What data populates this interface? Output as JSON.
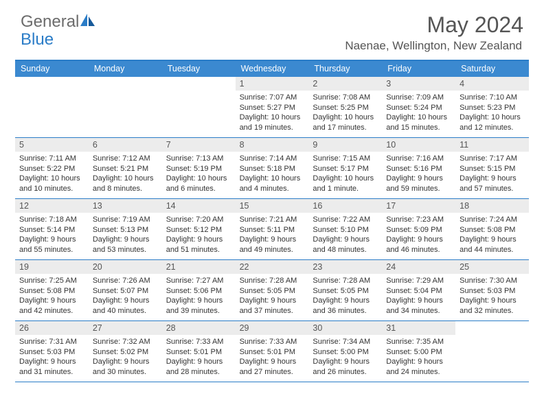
{
  "logo": {
    "word1": "General",
    "word2": "Blue"
  },
  "title": "May 2024",
  "location": "Naenae, Wellington, New Zealand",
  "colors": {
    "header_bg": "#3b89d0",
    "border": "#2a7cc7",
    "daynum_bg": "#ececec",
    "text": "#333333",
    "muted": "#555555",
    "logo_gray": "#6b6b6b",
    "logo_blue": "#2a7cc7",
    "background": "#ffffff"
  },
  "typography": {
    "title_fontsize": 32,
    "location_fontsize": 17,
    "header_fontsize": 12.5,
    "daynum_fontsize": 12.5,
    "body_fontsize": 11
  },
  "day_names": [
    "Sunday",
    "Monday",
    "Tuesday",
    "Wednesday",
    "Thursday",
    "Friday",
    "Saturday"
  ],
  "weeks": [
    [
      null,
      null,
      null,
      {
        "n": "1",
        "sr": "Sunrise: 7:07 AM",
        "ss": "Sunset: 5:27 PM",
        "d1": "Daylight: 10 hours",
        "d2": "and 19 minutes."
      },
      {
        "n": "2",
        "sr": "Sunrise: 7:08 AM",
        "ss": "Sunset: 5:25 PM",
        "d1": "Daylight: 10 hours",
        "d2": "and 17 minutes."
      },
      {
        "n": "3",
        "sr": "Sunrise: 7:09 AM",
        "ss": "Sunset: 5:24 PM",
        "d1": "Daylight: 10 hours",
        "d2": "and 15 minutes."
      },
      {
        "n": "4",
        "sr": "Sunrise: 7:10 AM",
        "ss": "Sunset: 5:23 PM",
        "d1": "Daylight: 10 hours",
        "d2": "and 12 minutes."
      }
    ],
    [
      {
        "n": "5",
        "sr": "Sunrise: 7:11 AM",
        "ss": "Sunset: 5:22 PM",
        "d1": "Daylight: 10 hours",
        "d2": "and 10 minutes."
      },
      {
        "n": "6",
        "sr": "Sunrise: 7:12 AM",
        "ss": "Sunset: 5:21 PM",
        "d1": "Daylight: 10 hours",
        "d2": "and 8 minutes."
      },
      {
        "n": "7",
        "sr": "Sunrise: 7:13 AM",
        "ss": "Sunset: 5:19 PM",
        "d1": "Daylight: 10 hours",
        "d2": "and 6 minutes."
      },
      {
        "n": "8",
        "sr": "Sunrise: 7:14 AM",
        "ss": "Sunset: 5:18 PM",
        "d1": "Daylight: 10 hours",
        "d2": "and 4 minutes."
      },
      {
        "n": "9",
        "sr": "Sunrise: 7:15 AM",
        "ss": "Sunset: 5:17 PM",
        "d1": "Daylight: 10 hours",
        "d2": "and 1 minute."
      },
      {
        "n": "10",
        "sr": "Sunrise: 7:16 AM",
        "ss": "Sunset: 5:16 PM",
        "d1": "Daylight: 9 hours",
        "d2": "and 59 minutes."
      },
      {
        "n": "11",
        "sr": "Sunrise: 7:17 AM",
        "ss": "Sunset: 5:15 PM",
        "d1": "Daylight: 9 hours",
        "d2": "and 57 minutes."
      }
    ],
    [
      {
        "n": "12",
        "sr": "Sunrise: 7:18 AM",
        "ss": "Sunset: 5:14 PM",
        "d1": "Daylight: 9 hours",
        "d2": "and 55 minutes."
      },
      {
        "n": "13",
        "sr": "Sunrise: 7:19 AM",
        "ss": "Sunset: 5:13 PM",
        "d1": "Daylight: 9 hours",
        "d2": "and 53 minutes."
      },
      {
        "n": "14",
        "sr": "Sunrise: 7:20 AM",
        "ss": "Sunset: 5:12 PM",
        "d1": "Daylight: 9 hours",
        "d2": "and 51 minutes."
      },
      {
        "n": "15",
        "sr": "Sunrise: 7:21 AM",
        "ss": "Sunset: 5:11 PM",
        "d1": "Daylight: 9 hours",
        "d2": "and 49 minutes."
      },
      {
        "n": "16",
        "sr": "Sunrise: 7:22 AM",
        "ss": "Sunset: 5:10 PM",
        "d1": "Daylight: 9 hours",
        "d2": "and 48 minutes."
      },
      {
        "n": "17",
        "sr": "Sunrise: 7:23 AM",
        "ss": "Sunset: 5:09 PM",
        "d1": "Daylight: 9 hours",
        "d2": "and 46 minutes."
      },
      {
        "n": "18",
        "sr": "Sunrise: 7:24 AM",
        "ss": "Sunset: 5:08 PM",
        "d1": "Daylight: 9 hours",
        "d2": "and 44 minutes."
      }
    ],
    [
      {
        "n": "19",
        "sr": "Sunrise: 7:25 AM",
        "ss": "Sunset: 5:08 PM",
        "d1": "Daylight: 9 hours",
        "d2": "and 42 minutes."
      },
      {
        "n": "20",
        "sr": "Sunrise: 7:26 AM",
        "ss": "Sunset: 5:07 PM",
        "d1": "Daylight: 9 hours",
        "d2": "and 40 minutes."
      },
      {
        "n": "21",
        "sr": "Sunrise: 7:27 AM",
        "ss": "Sunset: 5:06 PM",
        "d1": "Daylight: 9 hours",
        "d2": "and 39 minutes."
      },
      {
        "n": "22",
        "sr": "Sunrise: 7:28 AM",
        "ss": "Sunset: 5:05 PM",
        "d1": "Daylight: 9 hours",
        "d2": "and 37 minutes."
      },
      {
        "n": "23",
        "sr": "Sunrise: 7:28 AM",
        "ss": "Sunset: 5:05 PM",
        "d1": "Daylight: 9 hours",
        "d2": "and 36 minutes."
      },
      {
        "n": "24",
        "sr": "Sunrise: 7:29 AM",
        "ss": "Sunset: 5:04 PM",
        "d1": "Daylight: 9 hours",
        "d2": "and 34 minutes."
      },
      {
        "n": "25",
        "sr": "Sunrise: 7:30 AM",
        "ss": "Sunset: 5:03 PM",
        "d1": "Daylight: 9 hours",
        "d2": "and 32 minutes."
      }
    ],
    [
      {
        "n": "26",
        "sr": "Sunrise: 7:31 AM",
        "ss": "Sunset: 5:03 PM",
        "d1": "Daylight: 9 hours",
        "d2": "and 31 minutes."
      },
      {
        "n": "27",
        "sr": "Sunrise: 7:32 AM",
        "ss": "Sunset: 5:02 PM",
        "d1": "Daylight: 9 hours",
        "d2": "and 30 minutes."
      },
      {
        "n": "28",
        "sr": "Sunrise: 7:33 AM",
        "ss": "Sunset: 5:01 PM",
        "d1": "Daylight: 9 hours",
        "d2": "and 28 minutes."
      },
      {
        "n": "29",
        "sr": "Sunrise: 7:33 AM",
        "ss": "Sunset: 5:01 PM",
        "d1": "Daylight: 9 hours",
        "d2": "and 27 minutes."
      },
      {
        "n": "30",
        "sr": "Sunrise: 7:34 AM",
        "ss": "Sunset: 5:00 PM",
        "d1": "Daylight: 9 hours",
        "d2": "and 26 minutes."
      },
      {
        "n": "31",
        "sr": "Sunrise: 7:35 AM",
        "ss": "Sunset: 5:00 PM",
        "d1": "Daylight: 9 hours",
        "d2": "and 24 minutes."
      },
      null
    ]
  ]
}
